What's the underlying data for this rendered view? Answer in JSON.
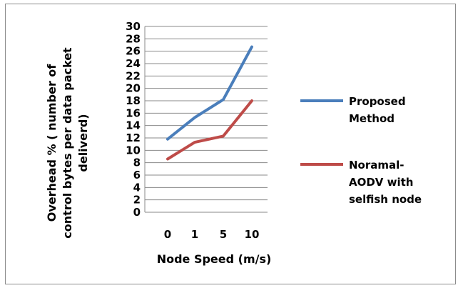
{
  "chart_data": {
    "type": "line",
    "categories": [
      "0",
      "1",
      "5",
      "10"
    ],
    "series": [
      {
        "name": "Proposed Method",
        "color": "#4a7ebb",
        "values": [
          11.8,
          15.3,
          18.2,
          26.7
        ]
      },
      {
        "name": "Noramal-AODV with selfish node",
        "color": "#be4b48",
        "values": [
          8.6,
          11.3,
          12.3,
          18.0
        ]
      }
    ],
    "title": "",
    "xlabel": "Node Speed (m/s)",
    "ylabel_lines": [
      "Overhead % ( number of",
      "control bytes per data packet",
      "deliverd)"
    ],
    "yticks": [
      "0",
      "2",
      "4",
      "6",
      "8",
      "10",
      "12",
      "14",
      "16",
      "18",
      "20",
      "22",
      "24",
      "26",
      "28",
      "30"
    ],
    "ylim": [
      0,
      30
    ],
    "grid": true,
    "legend_position": "right",
    "legend_lines": [
      [
        "Proposed",
        "Method"
      ],
      [
        "Noramal-",
        "AODV with",
        "selfish node"
      ]
    ]
  }
}
